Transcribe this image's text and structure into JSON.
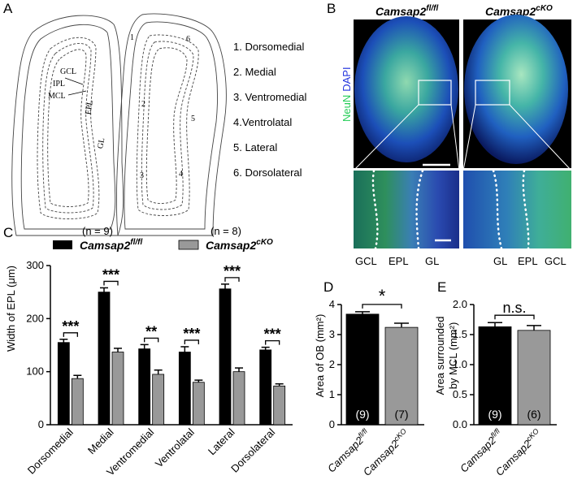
{
  "panels": {
    "A": {
      "label": "A",
      "layer_labels": [
        "GCL",
        "IPL",
        "MCL",
        "EPL",
        "GL"
      ],
      "region_numbers": [
        "1",
        "6",
        "2",
        "5",
        "3",
        "4"
      ],
      "legend": [
        "1. Dorsomedial",
        "2. Medial",
        "3. Ventromedial",
        "4.Ventrolatal",
        "5. Lateral",
        "6. Dorsolateral"
      ]
    },
    "B": {
      "label": "B",
      "genotype_left": {
        "gene": "Camsap2",
        "sup": "fl/fl"
      },
      "genotype_right": {
        "gene": "Camsap2",
        "sup": "cKO"
      },
      "stain_neun": "NeuN",
      "stain_dapi": "DAPI",
      "zoom_labels_left": [
        "GCL",
        "EPL",
        "GL"
      ],
      "zoom_labels_right": [
        "GL",
        "EPL",
        "GCL"
      ],
      "colors": {
        "neun": "#22cc55",
        "dapi": "#2233dd",
        "background": "#000000"
      }
    },
    "C": {
      "label": "C"
    },
    "D": {
      "label": "D"
    },
    "E": {
      "label": "E"
    }
  },
  "chart_data": [
    {
      "type": "bar",
      "panel": "C",
      "categories": [
        "Dorsomedial",
        "Medial",
        "Ventromedial",
        "Ventrolatal",
        "Lateral",
        "Dorsolateral"
      ],
      "series": [
        {
          "name": "Camsap2",
          "sup": "fl/fl",
          "n_label": "(n = 9)",
          "color": "#000000",
          "values": [
            155,
            250,
            143,
            137,
            256,
            141
          ],
          "errors": [
            6,
            8,
            8,
            10,
            9,
            5
          ]
        },
        {
          "name": "Camsap2",
          "sup": "cKO",
          "n_label": "(n = 8)",
          "color": "#999999",
          "values": [
            87,
            137,
            95,
            80,
            100,
            73
          ],
          "errors": [
            6,
            7,
            8,
            4,
            7,
            4
          ]
        }
      ],
      "significance": [
        "***",
        "***",
        "**",
        "***",
        "***",
        "***"
      ],
      "ylabel": "Width of EPL (μm)",
      "ylim": [
        0,
        300
      ],
      "yticks": [
        "0",
        "100",
        "200",
        "300"
      ]
    },
    {
      "type": "bar",
      "panel": "D",
      "categories": [
        {
          "gene": "Camsap2",
          "sup": "fl/fl"
        },
        {
          "gene": "Camsap2",
          "sup": "cKO"
        }
      ],
      "values": [
        3.68,
        3.24
      ],
      "errors": [
        0.08,
        0.14
      ],
      "n_labels": [
        "(9)",
        "(7)"
      ],
      "colors": [
        "#000000",
        "#999999"
      ],
      "significance": "*",
      "ylabel": "Area of OB (mm²)",
      "ylim": [
        0,
        4
      ],
      "yticks": [
        "0",
        "1",
        "2",
        "3",
        "4"
      ]
    },
    {
      "type": "bar",
      "panel": "E",
      "categories": [
        {
          "gene": "Camsap2",
          "sup": "fl/fl"
        },
        {
          "gene": "Camsap2",
          "sup": "cKO"
        }
      ],
      "values": [
        1.63,
        1.57
      ],
      "errors": [
        0.07,
        0.08
      ],
      "n_labels": [
        "(9)",
        "(6)"
      ],
      "colors": [
        "#000000",
        "#999999"
      ],
      "significance": "n.s.",
      "ylabel_line1": "Area surrounded",
      "ylabel_line2": "by MCL (mm²)",
      "ylim": [
        0,
        2.0
      ],
      "yticks": [
        "0.0",
        "0.5",
        "1.0",
        "1.5",
        "2.0"
      ]
    }
  ]
}
